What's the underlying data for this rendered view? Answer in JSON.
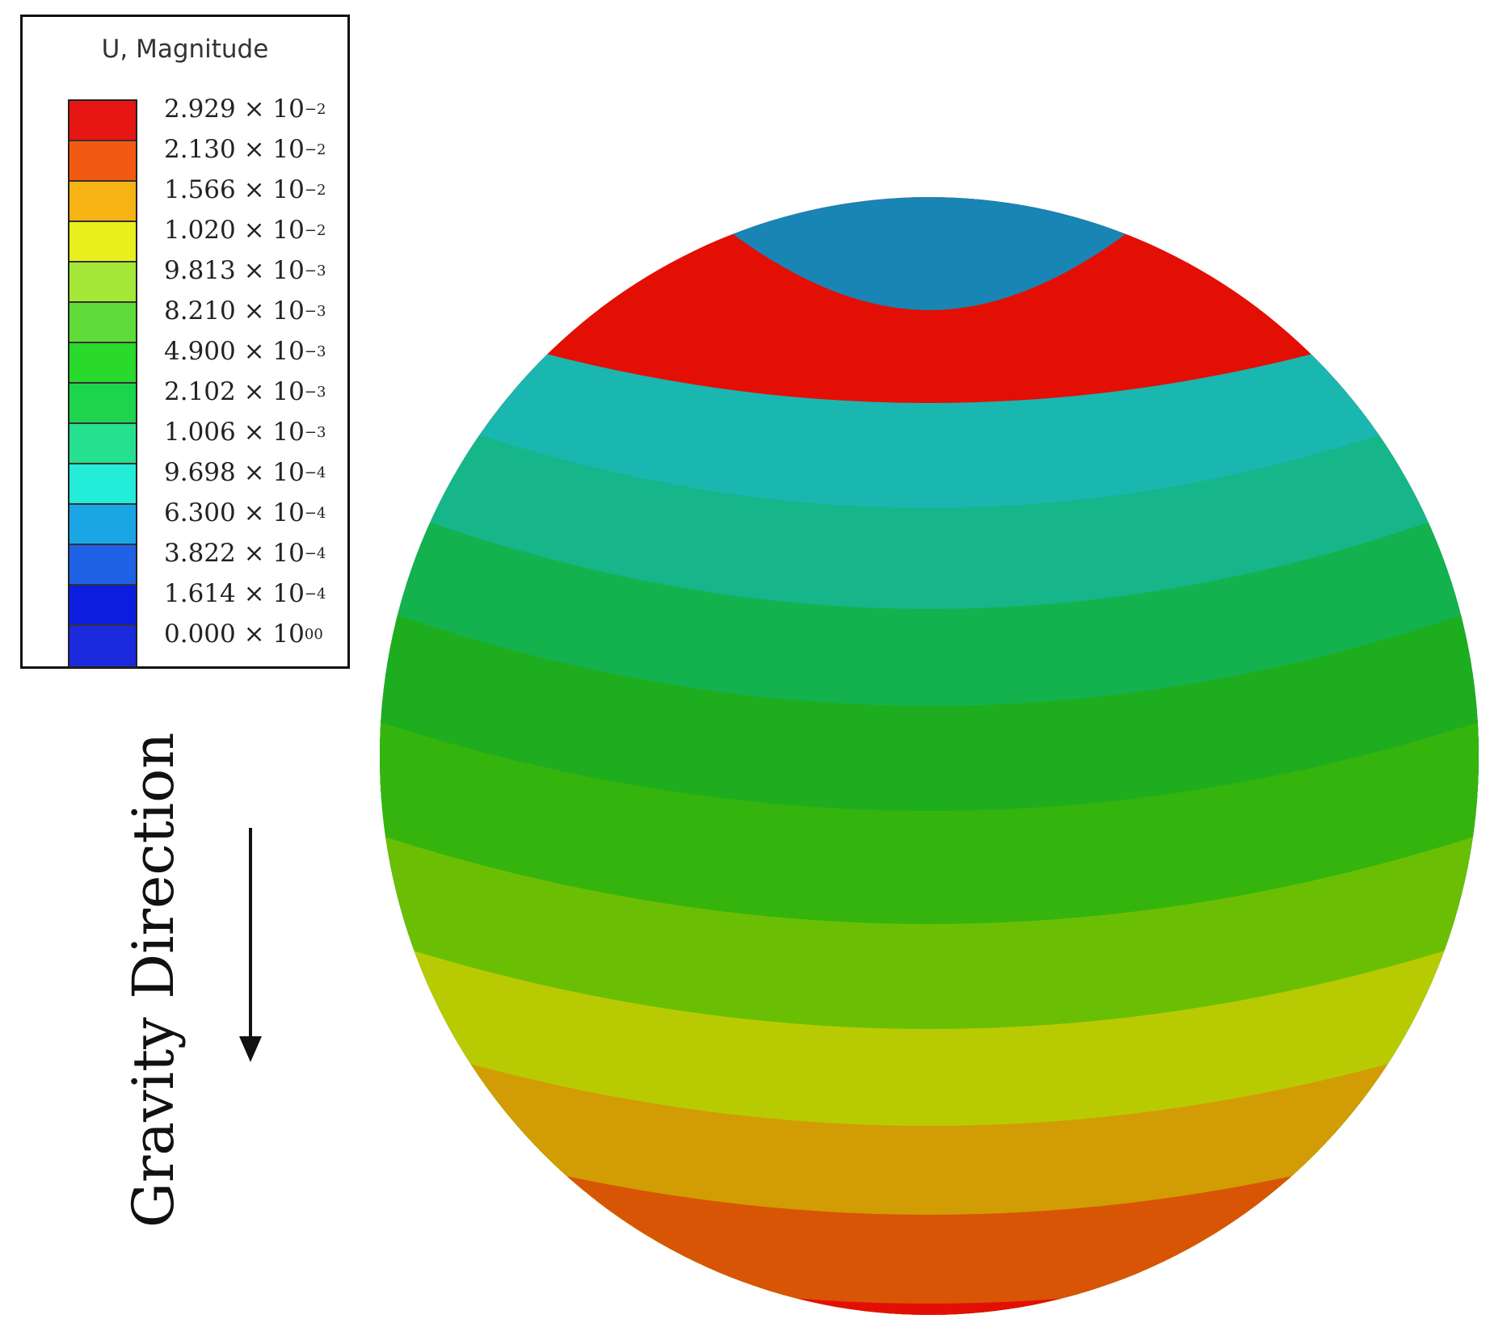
{
  "legend": {
    "title": "U, Magnitude",
    "entries": [
      {
        "mantissa": "2.929",
        "exponent": "−2",
        "color": "#e81515"
      },
      {
        "mantissa": "2.130",
        "exponent": "−2",
        "color": "#f25a13"
      },
      {
        "mantissa": "1.566",
        "exponent": "−2",
        "color": "#f7b213"
      },
      {
        "mantissa": "1.020",
        "exponent": "−2",
        "color": "#e8ef1d"
      },
      {
        "mantissa": "9.813",
        "exponent": "−3",
        "color": "#a6e837"
      },
      {
        "mantissa": "8.210",
        "exponent": "−3",
        "color": "#5fdc3a"
      },
      {
        "mantissa": "4.900",
        "exponent": "−3",
        "color": "#29d92b"
      },
      {
        "mantissa": "2.102",
        "exponent": "−3",
        "color": "#1cd44e"
      },
      {
        "mantissa": "1.006",
        "exponent": "−3",
        "color": "#25e08e"
      },
      {
        "mantissa": "9.698",
        "exponent": "−4",
        "color": "#23ecd8"
      },
      {
        "mantissa": "6.300",
        "exponent": "−4",
        "color": "#1aa6e5"
      },
      {
        "mantissa": "3.822",
        "exponent": "−4",
        "color": "#1f62e6"
      },
      {
        "mantissa": "1.614",
        "exponent": "−4",
        "color": "#0d1ddf"
      },
      {
        "mantissa": "0.000",
        "exponent": "00",
        "color": "#1a2adc"
      }
    ]
  },
  "gravity": {
    "label": "Gravity Direction"
  },
  "sphere": {
    "bands": [
      {
        "color": "#1885b5"
      },
      {
        "color": "#19b7b0"
      },
      {
        "color": "#16b58a"
      },
      {
        "color": "#13b24e"
      },
      {
        "color": "#1ead1e"
      },
      {
        "color": "#35b40e"
      },
      {
        "color": "#6abf04"
      },
      {
        "color": "#b8cb02"
      },
      {
        "color": "#d29c04"
      },
      {
        "color": "#d85505"
      },
      {
        "color": "#e30f05"
      }
    ]
  }
}
